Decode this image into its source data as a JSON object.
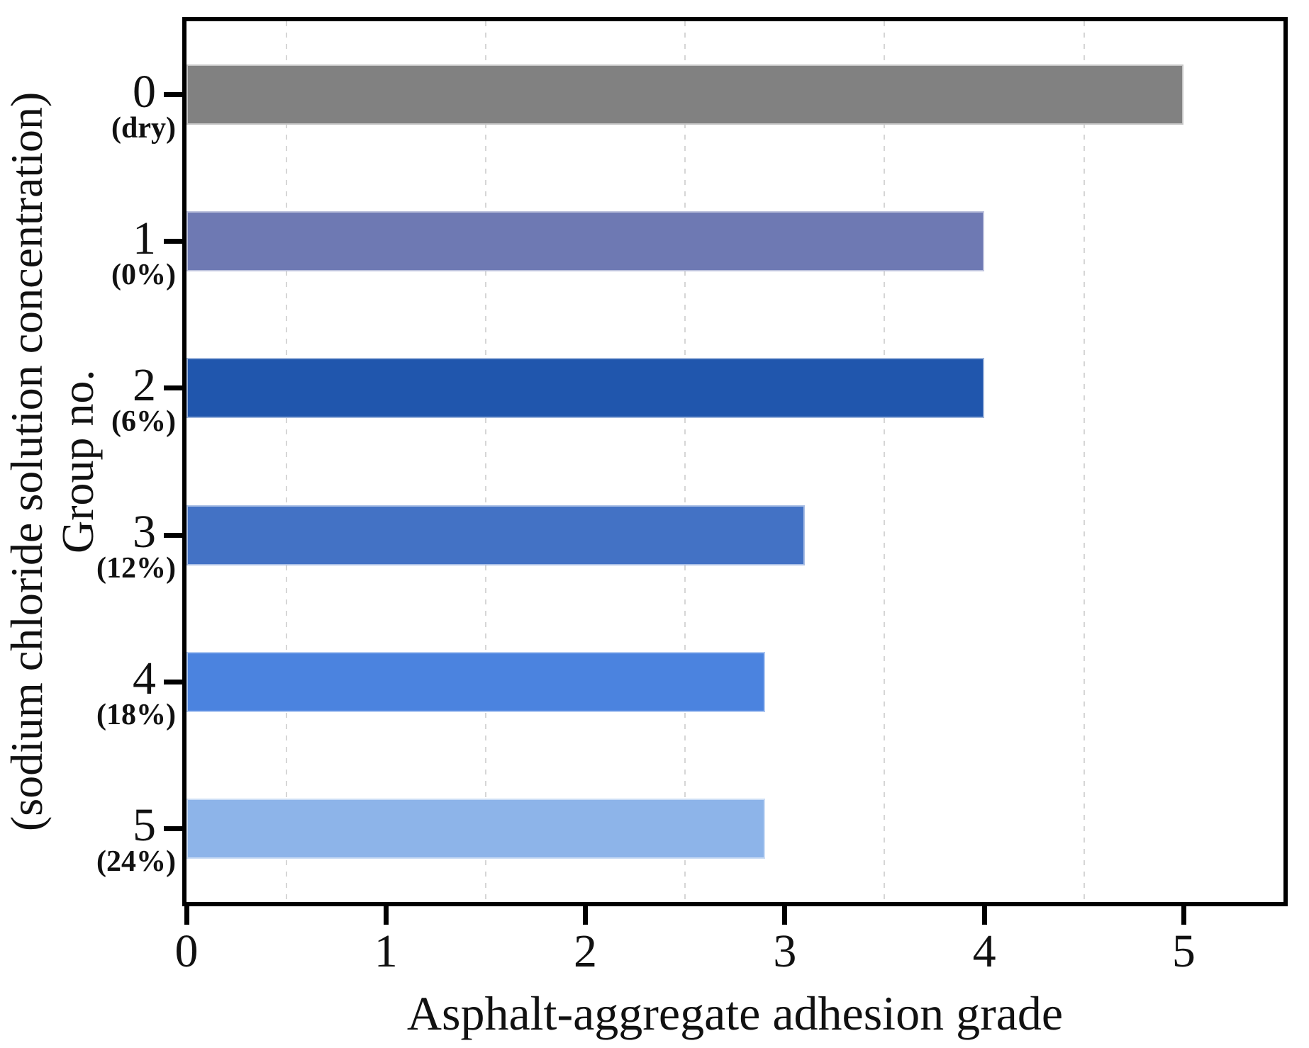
{
  "chart_data": {
    "type": "bar",
    "orientation": "horizontal",
    "title": "",
    "xlabel": "Asphalt-aggregate adhesion grade",
    "ylabel_inner_line": "Group no.",
    "ylabel_outer_line": "(sodium chloride solution concentration)",
    "xlim": [
      0,
      5.5
    ],
    "x_ticks": [
      "0",
      "1",
      "2",
      "3",
      "4",
      "5"
    ],
    "x_tick_values": [
      0,
      1,
      2,
      3,
      4,
      5
    ],
    "gridline_values": [
      0.5,
      1.5,
      2.5,
      3.5,
      4.5
    ],
    "grid_style": "dashed-vertical",
    "legend": "none",
    "groups": [
      {
        "label": "0",
        "sublabel": "(dry)",
        "value": 5.0,
        "color": "#818181"
      },
      {
        "label": "1",
        "sublabel": "(0%)",
        "value": 4.0,
        "color": "#6E79B3"
      },
      {
        "label": "2",
        "sublabel": "(6%)",
        "value": 4.0,
        "color": "#2056AD"
      },
      {
        "label": "3",
        "sublabel": "(12%)",
        "value": 3.1,
        "color": "#4372C5"
      },
      {
        "label": "4",
        "sublabel": "(18%)",
        "value": 2.9,
        "color": "#4B83DF"
      },
      {
        "label": "5",
        "sublabel": "(24%)",
        "value": 2.9,
        "color": "#8DB4E9"
      }
    ],
    "colors": {
      "spine": "#000000",
      "gridline": "#d6d6d6",
      "background": "#ffffff",
      "text": "#111111"
    }
  }
}
